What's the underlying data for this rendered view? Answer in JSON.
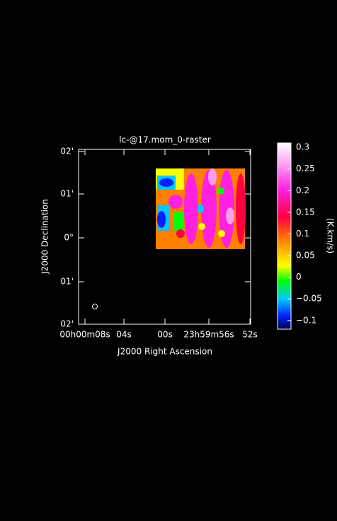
{
  "chart_data": {
    "type": "raster",
    "title": "lc-@17.mom_0-raster",
    "x_label": "J2000 Right Ascension",
    "y_label": "J2000 Declination",
    "x_tick_labels": [
      "00h00m08s",
      "04s",
      "00s",
      "23h59m56s",
      "52s"
    ],
    "y_tick_labels": [
      "02'",
      "01'",
      "0°",
      "01'",
      "02'"
    ],
    "colorbar": {
      "label": "(K.km/s)",
      "ylim": [
        -0.12,
        0.31
      ],
      "yticks": [
        0.3,
        0.25,
        0.2,
        0.15,
        0.1,
        0.05,
        0,
        {
          "value": -0.05,
          "label": "−0.05"
        },
        {
          "value": -0.1,
          "label": "−0.1"
        }
      ]
    }
  }
}
